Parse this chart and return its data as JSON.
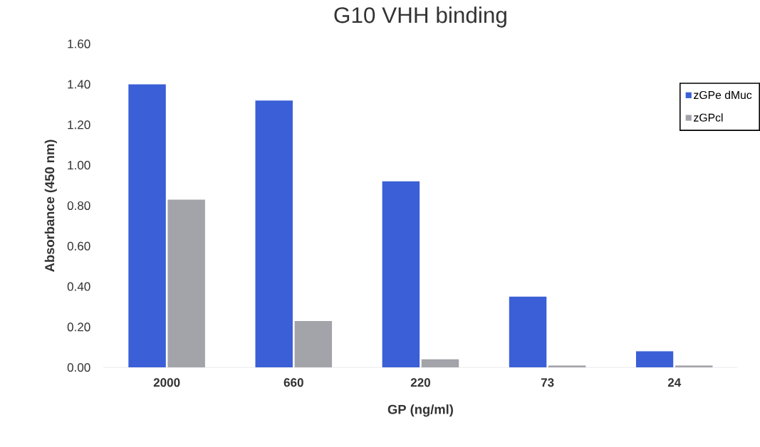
{
  "chart_data": {
    "type": "bar",
    "title": "G10 VHH binding",
    "xlabel": "GP (ng/ml)",
    "ylabel": "Absorbance (450 nm)",
    "categories": [
      "2000",
      "660",
      "220",
      "73",
      "24"
    ],
    "series": [
      {
        "name": "zGPe dMuc",
        "color": "#3a5fd6",
        "values": [
          1.4,
          1.32,
          0.92,
          0.35,
          0.08
        ]
      },
      {
        "name": "zGPcl",
        "color": "#a3a3aa",
        "values": [
          0.83,
          0.23,
          0.04,
          0.01,
          0.01
        ]
      }
    ],
    "ylim": [
      0,
      1.6
    ],
    "yticks": [
      {
        "value": 0,
        "label": "0.00"
      },
      {
        "value": 0.2,
        "label": "0.20"
      },
      {
        "value": 0.4,
        "label": "0.40"
      },
      {
        "value": 0.6,
        "label": "0.60"
      },
      {
        "value": 0.8,
        "label": "0.80"
      },
      {
        "value": 1.0,
        "label": "1.00"
      },
      {
        "value": 1.2,
        "label": "1.20"
      },
      {
        "value": 1.4,
        "label": "1.40"
      },
      {
        "value": 1.6,
        "label": "1.60"
      }
    ],
    "legend": "top right"
  }
}
